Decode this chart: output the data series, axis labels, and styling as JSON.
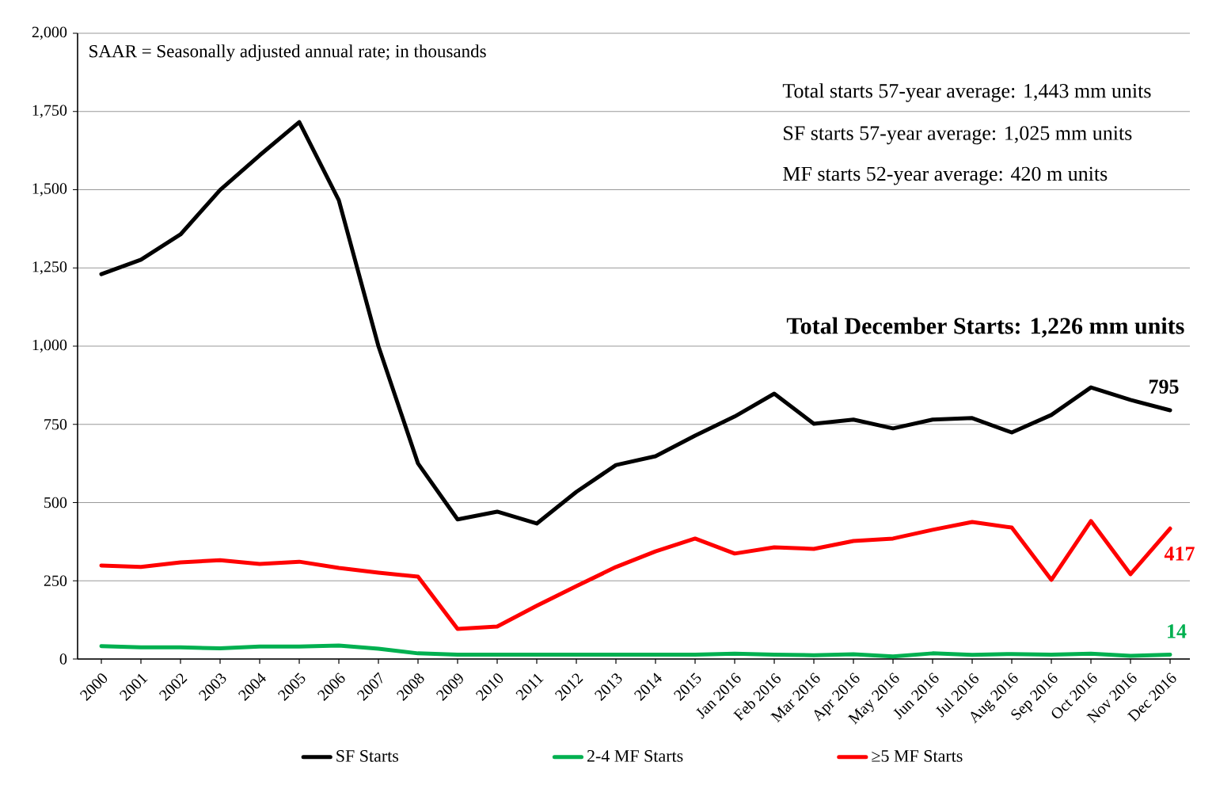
{
  "chart_data": {
    "type": "line",
    "categories": [
      "2000",
      "2001",
      "2002",
      "2003",
      "2004",
      "2005",
      "2006",
      "2007",
      "2008",
      "2009",
      "2010",
      "2011",
      "2012",
      "2013",
      "2014",
      "2015",
      "Jan 2016",
      "Feb 2016",
      "Mar 2016",
      "Apr 2016",
      "May 2016",
      "Jun 2016",
      "Jul 2016",
      "Aug 2016",
      "Sep 2016",
      "Oct 2016",
      "Nov 2016",
      "Dec 2016"
    ],
    "series": [
      {
        "name": "SF Starts",
        "color": "#000000",
        "values": [
          1230,
          1276,
          1357,
          1499,
          1610,
          1716,
          1466,
          1000,
          625,
          446,
          471,
          433,
          534,
          620,
          648,
          714,
          775,
          848,
          752,
          765,
          737,
          765,
          770,
          724,
          780,
          868,
          828,
          795
        ],
        "value_labels": [
          null,
          null,
          null,
          null,
          null,
          null,
          null,
          null,
          null,
          null,
          null,
          null,
          null,
          null,
          null,
          null,
          null,
          null,
          null,
          null,
          null,
          null,
          null,
          null,
          null,
          null,
          null,
          "795"
        ]
      },
      {
        "name": "2-4 MF Starts",
        "color": "#00b050",
        "values": [
          41,
          37,
          37,
          34,
          40,
          40,
          43,
          33,
          18,
          14,
          14,
          14,
          14,
          14,
          14,
          14,
          17,
          14,
          12,
          15,
          8,
          18,
          13,
          16,
          14,
          17,
          10,
          14
        ],
        "value_labels": [
          null,
          null,
          null,
          null,
          null,
          null,
          null,
          null,
          null,
          null,
          null,
          null,
          null,
          null,
          null,
          null,
          null,
          null,
          null,
          null,
          null,
          null,
          null,
          null,
          null,
          null,
          null,
          "14"
        ]
      },
      {
        "name": "≥5 MF Starts",
        "color": "#ff0000",
        "values": [
          299,
          294,
          309,
          316,
          304,
          311,
          291,
          276,
          263,
          96,
          104,
          170,
          233,
          294,
          344,
          385,
          337,
          357,
          352,
          377,
          385,
          413,
          438,
          420,
          253,
          441,
          271,
          417
        ],
        "value_labels": [
          null,
          null,
          null,
          null,
          null,
          null,
          null,
          null,
          null,
          null,
          null,
          null,
          null,
          null,
          null,
          null,
          null,
          null,
          null,
          null,
          null,
          null,
          null,
          null,
          null,
          null,
          null,
          "417"
        ]
      }
    ],
    "ylim": [
      0,
      2000
    ],
    "yticks": [
      0,
      250,
      500,
      750,
      {
        "value": 1000,
        "label": "1,000"
      },
      {
        "value": 1250,
        "label": "1,250"
      },
      {
        "value": 1500,
        "label": "1,500"
      },
      {
        "value": 1750,
        "label": "1,750"
      },
      {
        "value": 2000,
        "label": "2,000"
      }
    ],
    "grid": "y",
    "legend": "bottom",
    "marker": "none",
    "line_style": "solid",
    "annotations": [
      "SAAR = Seasonally adjusted annual rate; in thousands",
      "Total starts 57-year average: 1,443 mm units",
      "SF starts 57-year average: 1,025 mm units",
      "MF starts 52-year average: 420 m units",
      "Total December Starts: 1,226 mm units"
    ]
  }
}
